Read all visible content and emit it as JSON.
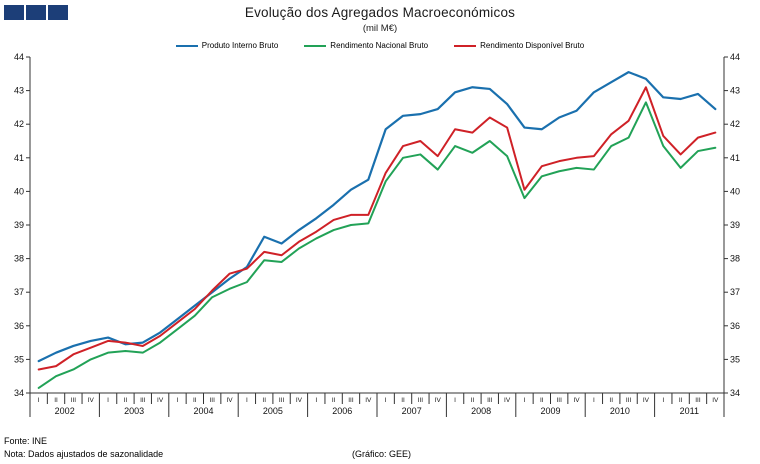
{
  "header": {
    "logo_color": "#1c3e78"
  },
  "footer": {
    "source": "Fonte: INE",
    "note": "Nota: Dados ajustados de sazonalidade",
    "credit": "(Gráfico: GEE)"
  },
  "chart_data": {
    "type": "line",
    "title": "Evolução dos Agregados Macroeconómicos",
    "subtitle": "(mil M€)",
    "ylim": [
      34,
      44
    ],
    "y_min": 34,
    "y_max": 44,
    "y_step": 1,
    "grid": false,
    "legend_position": "top",
    "axis_color": "#333333",
    "quarter_labels": [
      "I",
      "II",
      "III",
      "IV"
    ],
    "years": [
      "2002",
      "2003",
      "2004",
      "2005",
      "2006",
      "2007",
      "2008",
      "2009",
      "2010",
      "2011"
    ],
    "series": [
      {
        "name": "Produto Interno Bruto",
        "color": "#1a70ae",
        "values": [
          34.95,
          35.2,
          35.4,
          35.55,
          35.65,
          35.45,
          35.5,
          35.8,
          36.2,
          36.6,
          37.0,
          37.4,
          37.75,
          38.65,
          38.45,
          38.85,
          39.2,
          39.6,
          40.05,
          40.35,
          41.85,
          42.25,
          42.3,
          42.45,
          42.95,
          43.1,
          43.05,
          42.6,
          41.9,
          41.85,
          42.2,
          42.4,
          42.95,
          43.25,
          43.55,
          43.35,
          42.8,
          42.75,
          42.9,
          42.45
        ]
      },
      {
        "name": "Rendimento Nacional Bruto",
        "color": "#22a257",
        "values": [
          34.15,
          34.5,
          34.7,
          35.0,
          35.2,
          35.25,
          35.2,
          35.5,
          35.9,
          36.3,
          36.85,
          37.1,
          37.3,
          37.95,
          37.9,
          38.3,
          38.6,
          38.85,
          39.0,
          39.05,
          40.3,
          41.0,
          41.1,
          40.65,
          41.35,
          41.15,
          41.5,
          41.05,
          39.8,
          40.45,
          40.6,
          40.7,
          40.65,
          41.35,
          41.6,
          42.65,
          41.35,
          40.7,
          41.2,
          41.3
        ]
      },
      {
        "name": "Rendimento Disponível Bruto",
        "color": "#cf2127",
        "values": [
          34.7,
          34.8,
          35.15,
          35.35,
          35.55,
          35.5,
          35.4,
          35.7,
          36.1,
          36.5,
          37.05,
          37.55,
          37.7,
          38.2,
          38.1,
          38.5,
          38.8,
          39.15,
          39.3,
          39.3,
          40.55,
          41.35,
          41.5,
          41.05,
          41.85,
          41.75,
          42.2,
          41.9,
          40.05,
          40.75,
          40.9,
          41.0,
          41.05,
          41.7,
          42.1,
          43.1,
          41.65,
          41.1,
          41.6,
          41.75
        ]
      }
    ]
  }
}
